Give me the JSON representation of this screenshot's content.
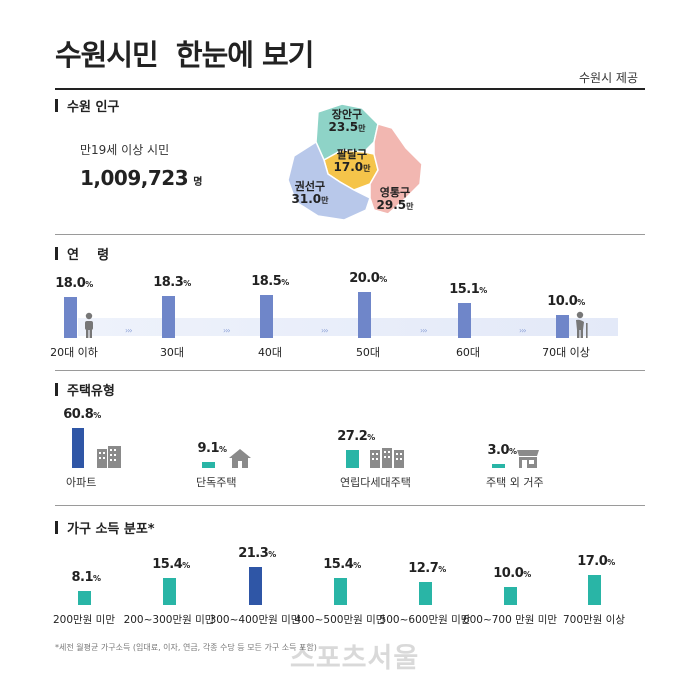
{
  "page": {
    "title": "수원시민  한눈에 보기",
    "source": "수원시 제공",
    "footnote": "*세전 월평균 가구소득 (임대료, 이자, 연금, 각종 수당 등 모든 가구 소득 포함)",
    "watermark": "스포츠서울"
  },
  "population": {
    "section_title": "수원 인구",
    "caption": "만19세 이상 시민",
    "value": "1,009,723",
    "unit": "명",
    "districts": [
      {
        "name": "장안구",
        "value": "23.5",
        "unit": "만",
        "color": "#8ed3c7"
      },
      {
        "name": "팔달구",
        "value": "17.0",
        "unit": "만",
        "color": "#f5c44a"
      },
      {
        "name": "권선구",
        "value": "31.0",
        "unit": "만",
        "color": "#b8c8ea"
      },
      {
        "name": "영통구",
        "value": "29.5",
        "unit": "만",
        "color": "#f2b7b1"
      }
    ]
  },
  "age": {
    "section_title": "연    령"
  },
  "housing": {
    "section_title": "주택유형"
  },
  "income": {
    "section_title": "가구 소득 분포*"
  },
  "chart_data": [
    {
      "type": "bar",
      "title": "연    령",
      "categories": [
        "20대 이하",
        "30대",
        "40대",
        "50대",
        "60대",
        "70대 이상"
      ],
      "values": [
        18.0,
        18.3,
        18.5,
        20.0,
        15.1,
        10.0
      ],
      "value_labels": [
        "18.0",
        "18.3",
        "18.5",
        "20.0",
        "15.1",
        "10.0"
      ],
      "unit": "%",
      "ylim": [
        0,
        25
      ],
      "colors": {
        "bar": "#6f86c9"
      },
      "icons": {
        "first": "young-person-icon",
        "last": "elderly-person-icon"
      },
      "grid": false
    },
    {
      "type": "bar",
      "title": "주택유형",
      "categories": [
        "아파트",
        "단독주택",
        "연립다세대주택",
        "주택 외 거주"
      ],
      "values": [
        60.8,
        9.1,
        27.2,
        3.0
      ],
      "value_labels": [
        "60.8",
        "9.1",
        "27.2",
        "3.0"
      ],
      "unit": "%",
      "ylim": [
        0,
        65
      ],
      "colors": {
        "highlight": "#2f56a6",
        "bar": "#29b5a6",
        "icon": "#8a8a8a"
      },
      "icons": [
        "apartment-icon",
        "house-icon",
        "villa-icon",
        "store-icon"
      ],
      "grid": false
    },
    {
      "type": "bar",
      "title": "가구 소득 분포*",
      "categories": [
        "200만원 미만",
        "200~300만원 미만",
        "300~400만원 미만",
        "400~500만원 미만",
        "500~600만원 미만",
        "600~700 만원 미만",
        "700만원 이상"
      ],
      "values": [
        8.1,
        15.4,
        21.3,
        15.4,
        12.7,
        10.0,
        17.0
      ],
      "value_labels": [
        "8.1",
        "15.4",
        "21.3",
        "15.4",
        "12.7",
        "10.0",
        "17.0"
      ],
      "unit": "%",
      "ylim": [
        0,
        25
      ],
      "colors": {
        "highlight": "#2f56a6",
        "bar": "#29b5a6"
      },
      "grid": false
    }
  ]
}
